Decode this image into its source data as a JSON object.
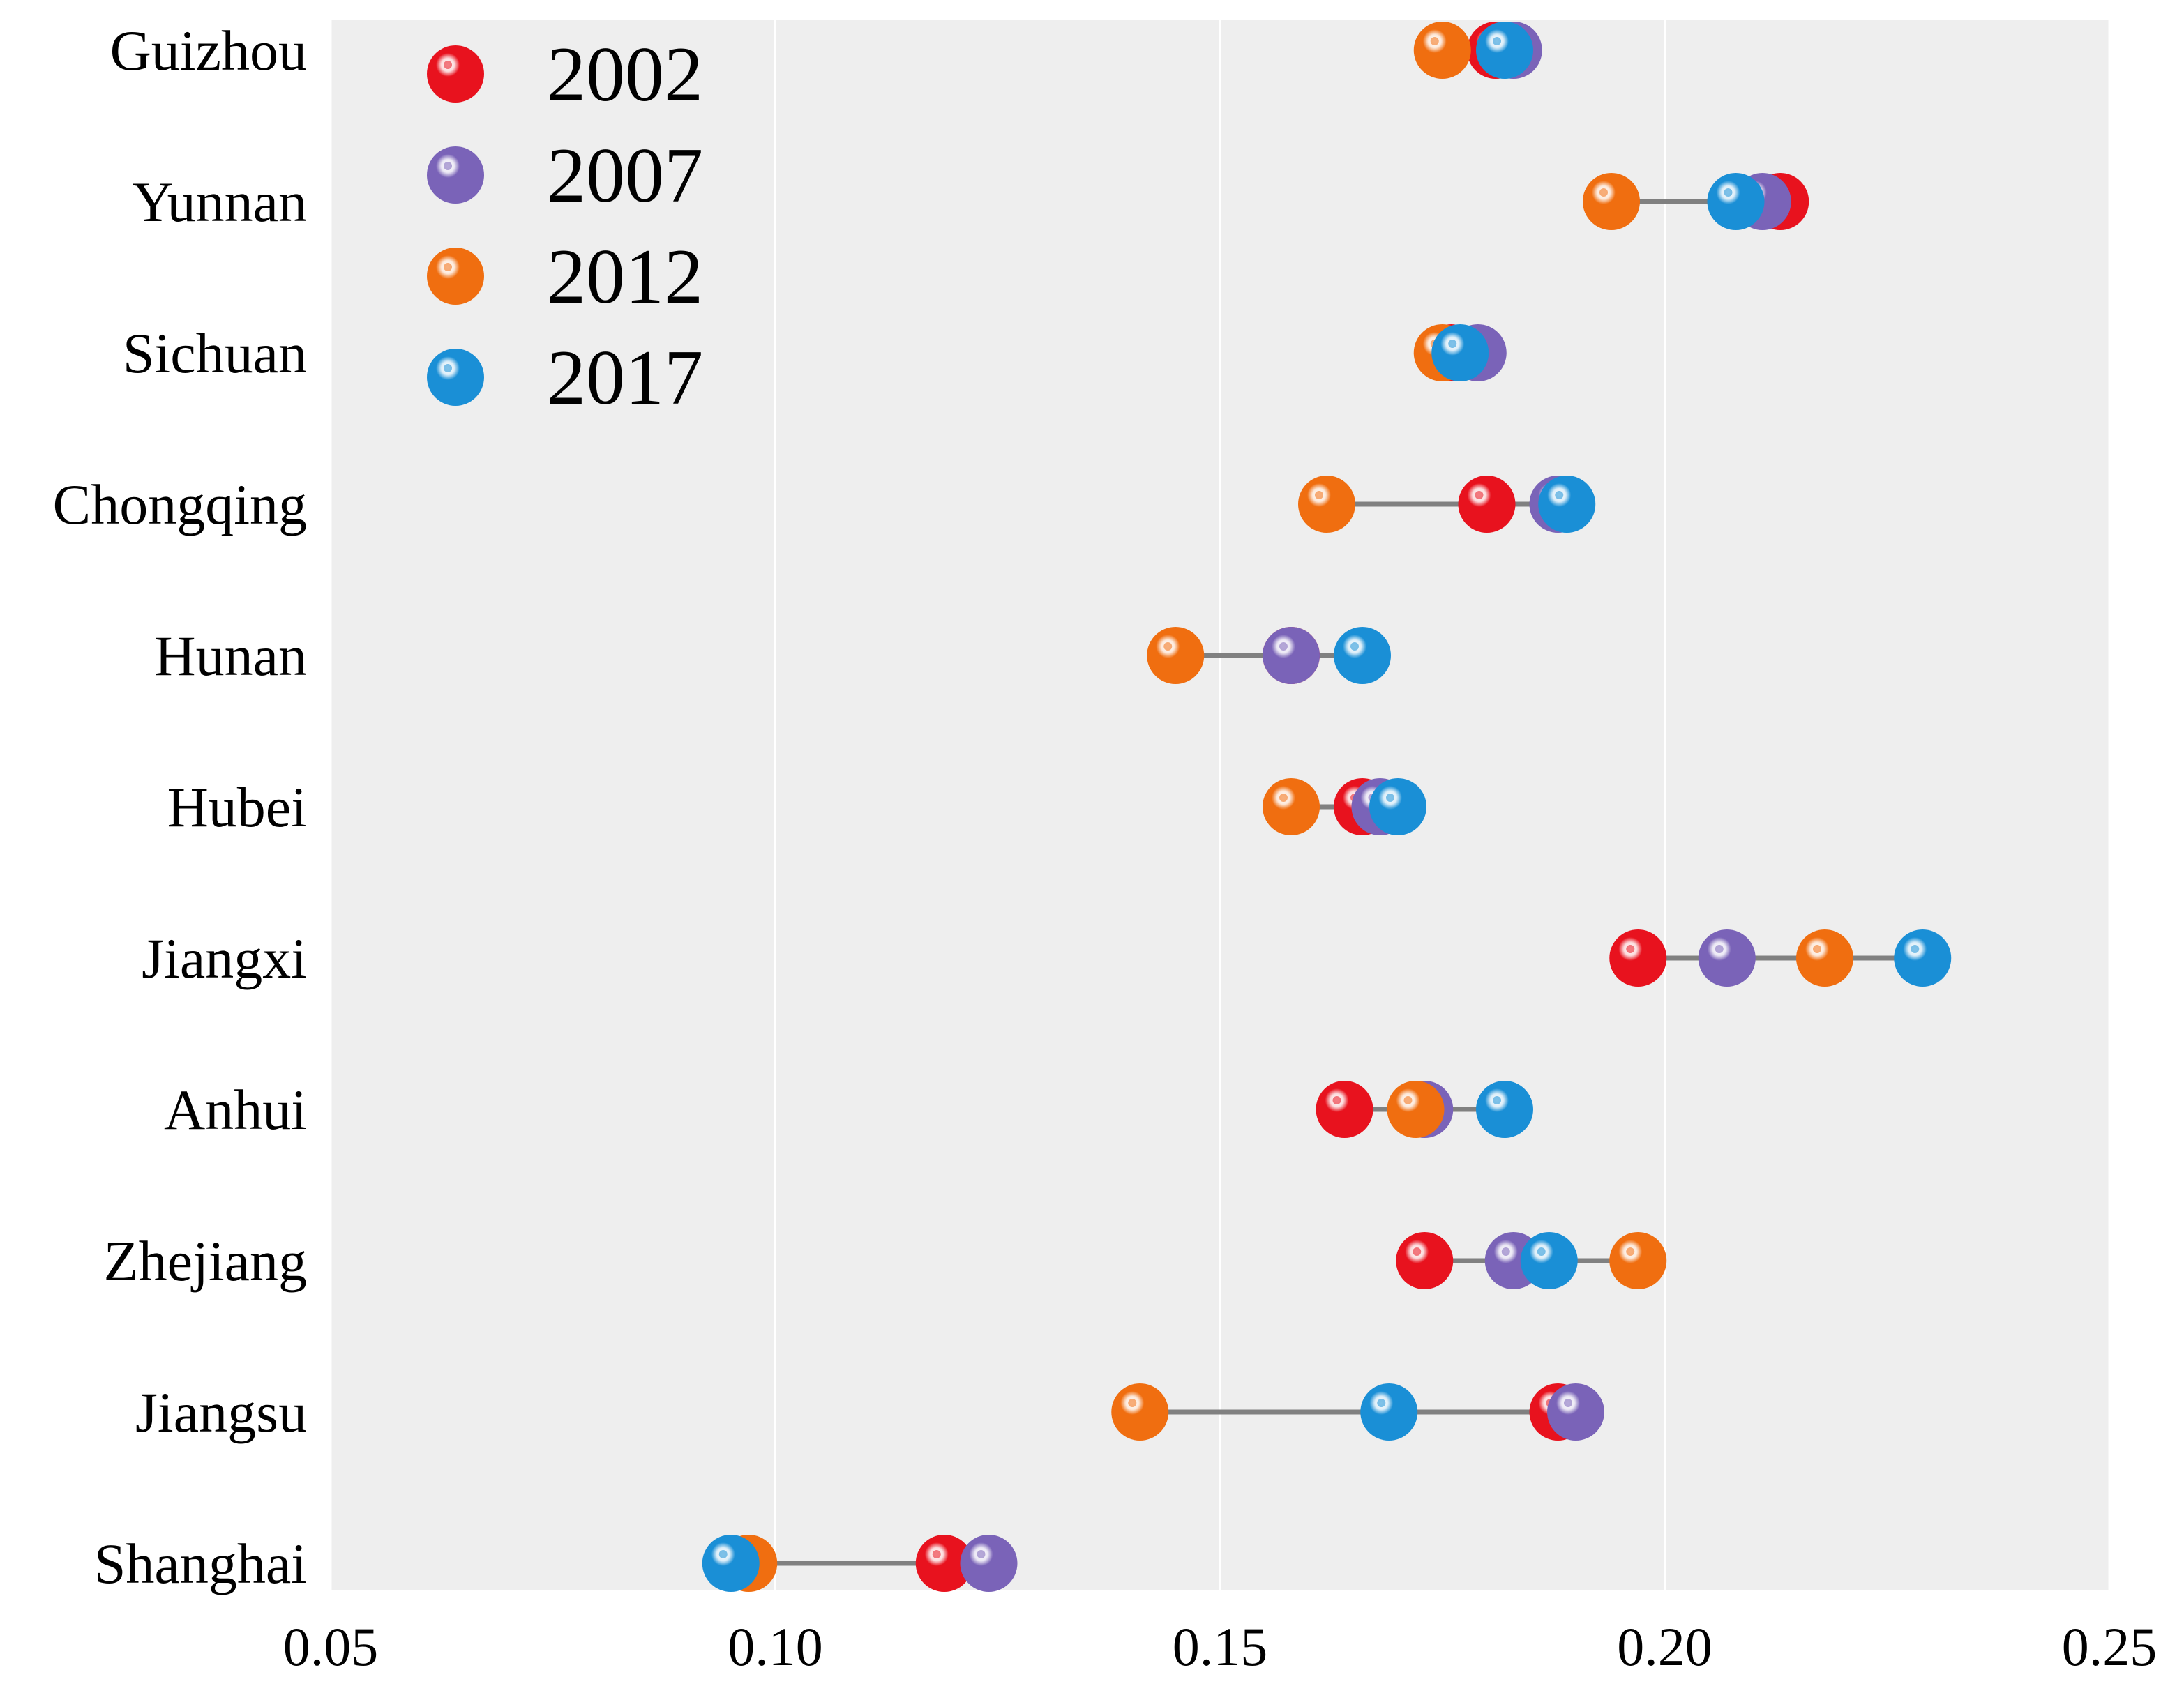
{
  "chart_data": {
    "type": "dot-range",
    "title": "",
    "xlabel": "",
    "ylabel": "",
    "xlim": [
      0.05,
      0.25
    ],
    "xticks": [
      0.05,
      0.1,
      0.15,
      0.2,
      0.25
    ],
    "xtick_labels": [
      "0.05",
      "0.10",
      "0.15",
      "0.20",
      "0.25"
    ],
    "grid": true,
    "legend_position": "top-left",
    "categories": [
      "Guizhou",
      "Yunnan",
      "Sichuan",
      "Chongqing",
      "Hunan",
      "Hubei",
      "Jiangxi",
      "Anhui",
      "Zhejiang",
      "Jiangsu",
      "Shanghai"
    ],
    "series": [
      {
        "name": "2002",
        "color": "#e8121e",
        "values": [
          0.181,
          0.213,
          0.176,
          0.18,
          0.158,
          0.166,
          0.197,
          0.164,
          0.173,
          0.188,
          0.119
        ]
      },
      {
        "name": "2007",
        "color": "#7a63b8",
        "values": [
          0.183,
          0.211,
          0.179,
          0.188,
          0.158,
          0.168,
          0.207,
          0.173,
          0.183,
          0.19,
          0.124
        ]
      },
      {
        "name": "2012",
        "color": "#f06e10",
        "values": [
          0.175,
          0.194,
          0.175,
          0.162,
          0.145,
          0.158,
          0.218,
          0.172,
          0.197,
          0.141,
          0.097
        ]
      },
      {
        "name": "2017",
        "color": "#1a8fd6",
        "values": [
          0.182,
          0.208,
          0.177,
          0.189,
          0.166,
          0.17,
          0.229,
          0.182,
          0.187,
          0.169,
          0.095
        ]
      }
    ]
  }
}
